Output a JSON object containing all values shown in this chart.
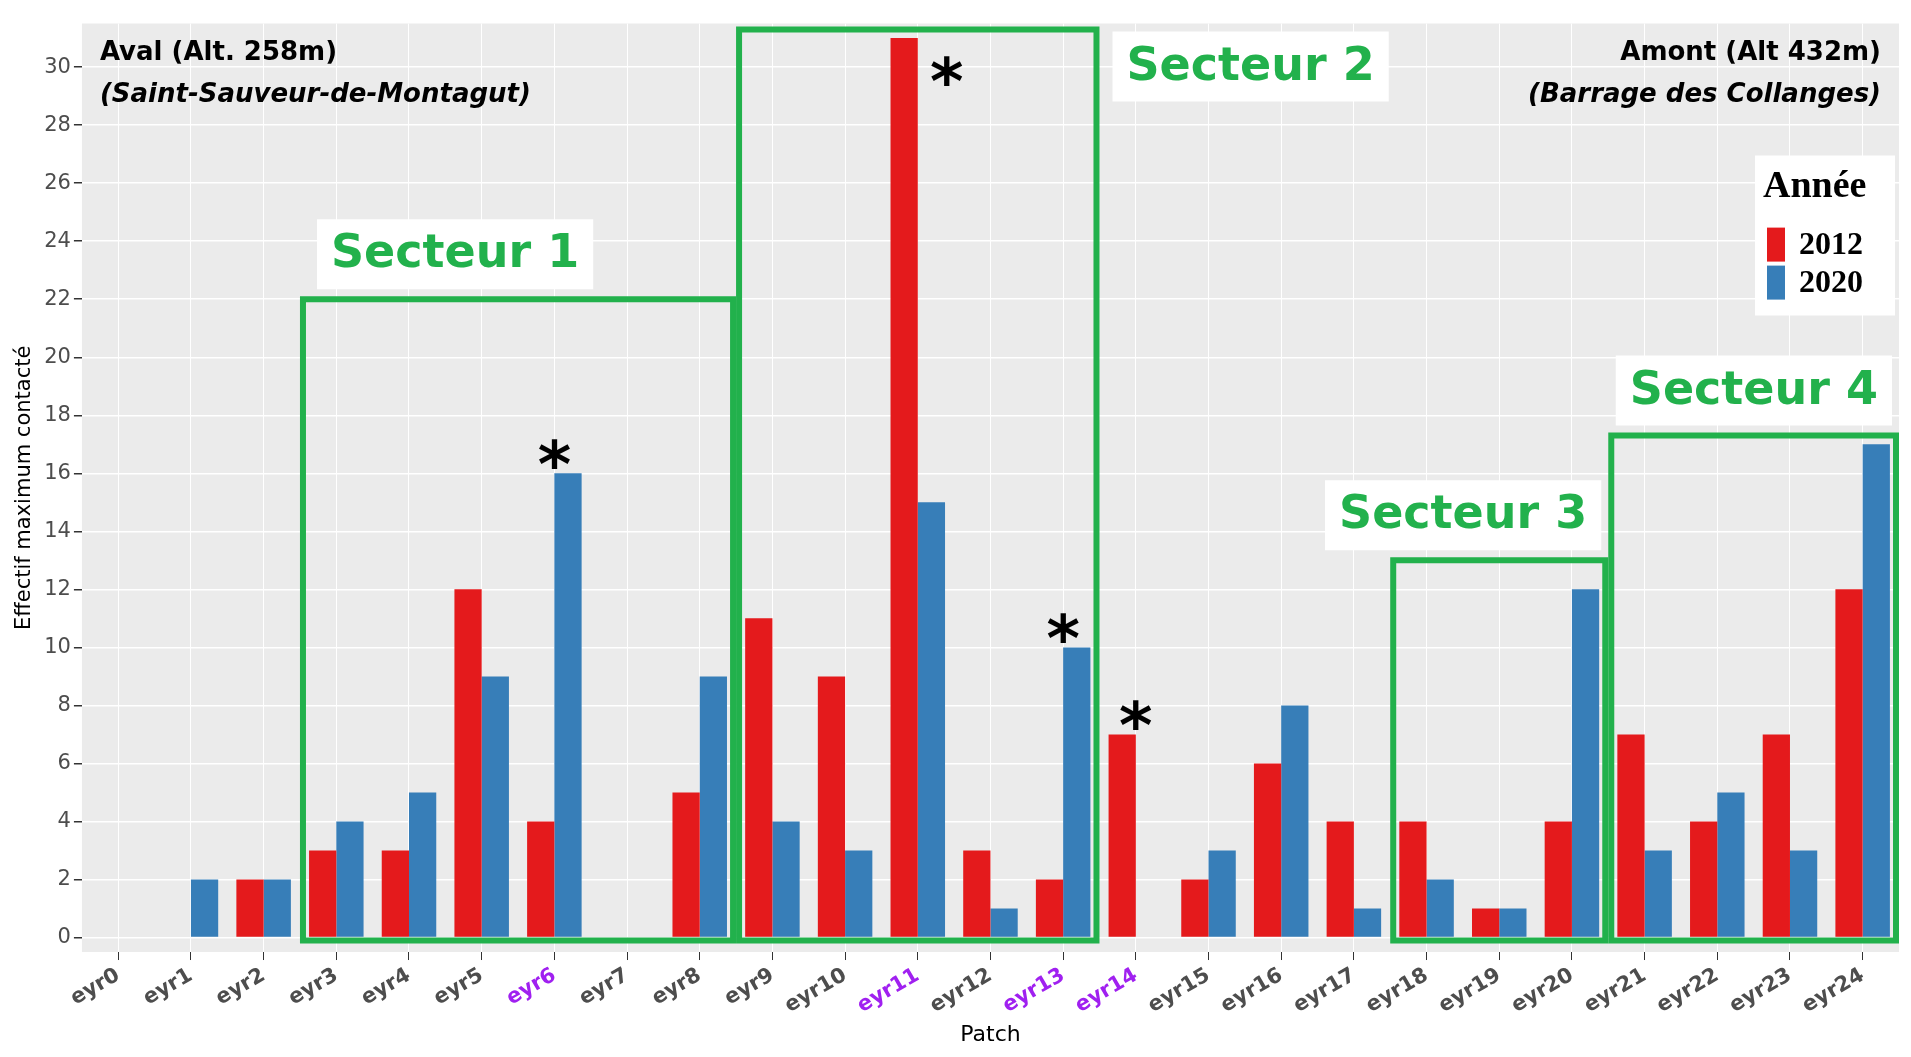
{
  "chart_data": {
    "type": "bar",
    "xlabel": "Patch",
    "ylabel": "Effectif maximum contacté",
    "legend_title": "Année",
    "categories": [
      "eyr0",
      "eyr1",
      "eyr2",
      "eyr3",
      "eyr4",
      "eyr5",
      "eyr6",
      "eyr7",
      "eyr8",
      "eyr9",
      "eyr10",
      "eyr11",
      "eyr12",
      "eyr13",
      "eyr14",
      "eyr15",
      "eyr16",
      "eyr17",
      "eyr18",
      "eyr19",
      "eyr20",
      "eyr21",
      "eyr22",
      "eyr23",
      "eyr24"
    ],
    "series": [
      {
        "name": "2012",
        "color": "#e41a1c",
        "values": [
          0,
          0,
          2,
          3,
          3,
          12,
          4,
          0,
          5,
          11,
          9,
          31,
          3,
          2,
          7,
          2,
          6,
          4,
          4,
          1,
          4,
          7,
          4,
          7,
          12
        ]
      },
      {
        "name": "2020",
        "color": "#377eb8",
        "values": [
          0,
          2,
          2,
          4,
          5,
          9,
          16,
          0,
          9,
          4,
          3,
          15,
          1,
          10,
          0,
          3,
          8,
          1,
          2,
          1,
          12,
          3,
          5,
          3,
          17
        ]
      }
    ],
    "ylim": [
      -0.5,
      31.5
    ],
    "yticks": [
      0,
      2,
      4,
      6,
      8,
      10,
      12,
      14,
      16,
      18,
      20,
      22,
      24,
      26,
      28,
      30
    ],
    "grid": true,
    "legend": "top right",
    "annotations": [
      "Aval (Alt. 258m)",
      "(Saint-Sauveur-de-Montagut)",
      "Amont (Alt 432m)",
      "(Barrage des Collanges)",
      "Secteur 1",
      "Secteur 2",
      "Secteur 3",
      "Secteur 4",
      {
        "text": "*",
        "x": "eyr6",
        "y": 16
      },
      {
        "text": "*",
        "x": "eyr11",
        "y": 31
      },
      {
        "text": "*",
        "x": "eyr13",
        "y": 10
      },
      {
        "text": "*",
        "x": "eyr14",
        "y": 7
      }
    ]
  }
}
